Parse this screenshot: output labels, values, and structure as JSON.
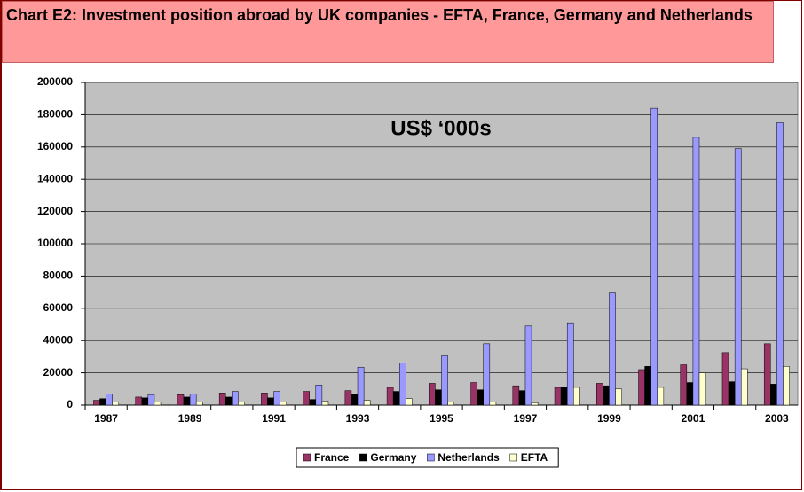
{
  "chart_data": {
    "type": "bar",
    "title": "Chart E2: Investment position abroad by UK companies - EFTA, France, Germany and Netherlands",
    "annotation": "US$ ‘000s",
    "categories": [
      "1987",
      null,
      "1989",
      null,
      "1991",
      null,
      "1993",
      null,
      "1995",
      null,
      "1997",
      null,
      "1999",
      null,
      "2001",
      null,
      "2003"
    ],
    "series": [
      {
        "name": "France",
        "color": "#993366",
        "values": [
          3000,
          5000,
          6500,
          7500,
          7500,
          8500,
          9000,
          11000,
          13500,
          14000,
          12000,
          11000,
          13500,
          22000,
          25000,
          32500,
          38000
        ]
      },
      {
        "name": "Germany",
        "color": "#000000",
        "values": [
          4000,
          4500,
          5000,
          5000,
          4500,
          3500,
          6500,
          8500,
          9500,
          9500,
          9000,
          11000,
          12000,
          24000,
          14000,
          14500,
          13000
        ]
      },
      {
        "name": "Netherlands",
        "color": "#9999ff",
        "values": [
          7000,
          6500,
          7000,
          8500,
          8500,
          12500,
          23500,
          26000,
          30500,
          38000,
          49000,
          51000,
          70000,
          184000,
          166000,
          159000,
          175000
        ]
      },
      {
        "name": "EFTA",
        "color": "#ffffcc",
        "values": [
          2000,
          2000,
          2000,
          2000,
          2000,
          2500,
          3000,
          4000,
          2000,
          2000,
          1500,
          11000,
          10000,
          11000,
          20000,
          22500,
          24000
        ]
      }
    ],
    "ylim": [
      0,
      200000
    ],
    "yticks": [
      0,
      20000,
      40000,
      60000,
      80000,
      100000,
      120000,
      140000,
      160000,
      180000,
      200000
    ],
    "grid": true,
    "plot_background": "#c0c0c0",
    "legend": "bottom"
  }
}
